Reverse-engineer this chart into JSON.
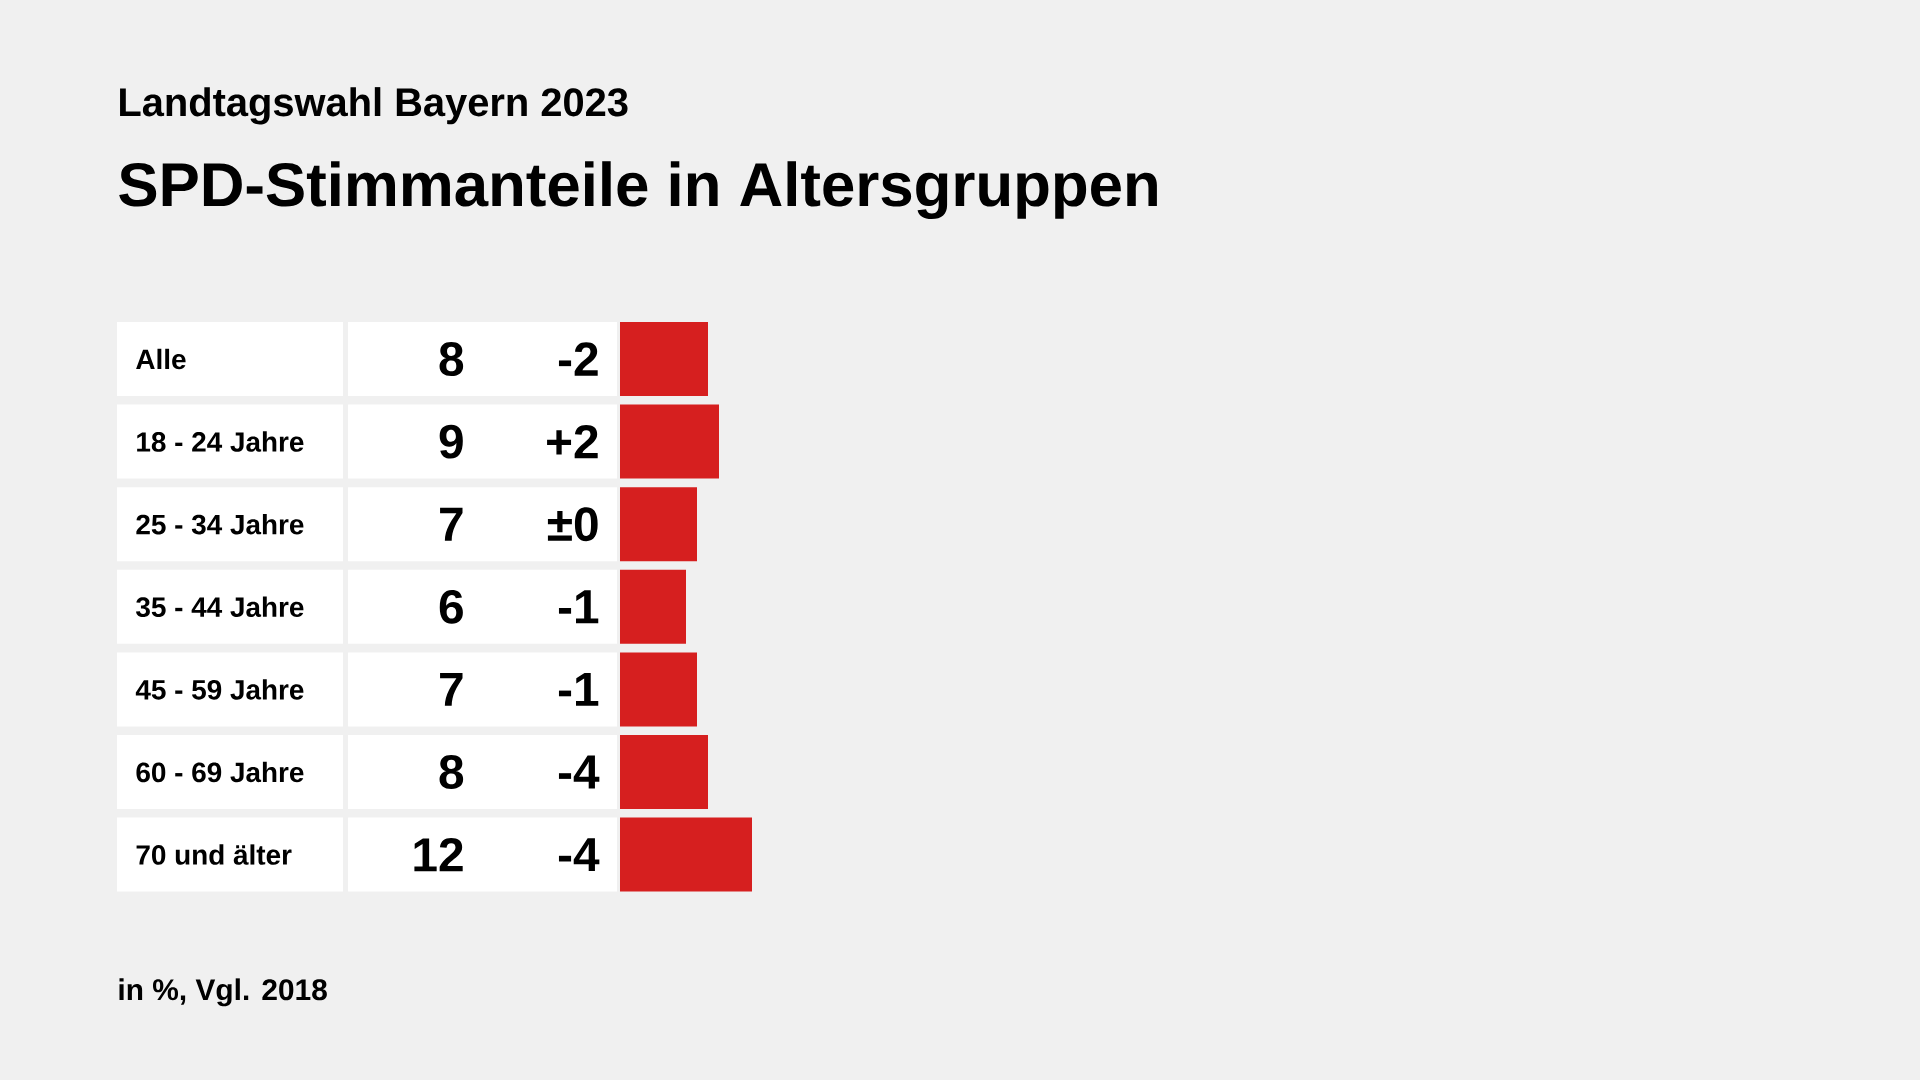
{
  "chart_data": {
    "type": "bar",
    "orientation": "horizontal",
    "subtitle": "Landtagswahl Bayern 2023",
    "title": "SPD-Stimmanteile in Altersgruppen",
    "categories": [
      "Alle",
      "18 - 24 Jahre",
      "25 - 34 Jahre",
      "35 - 44 Jahre",
      "45 - 59 Jahre",
      "60 - 69 Jahre",
      "70 und älter"
    ],
    "values": [
      8,
      9,
      7,
      6,
      7,
      8,
      12
    ],
    "color": "#d61f1f",
    "data_labels": true,
    "annotations": [
      "-2",
      "+2",
      "±0",
      "-1",
      "-1",
      "-4",
      "-4",
      "in %, Vgl. 2018"
    ]
  }
}
